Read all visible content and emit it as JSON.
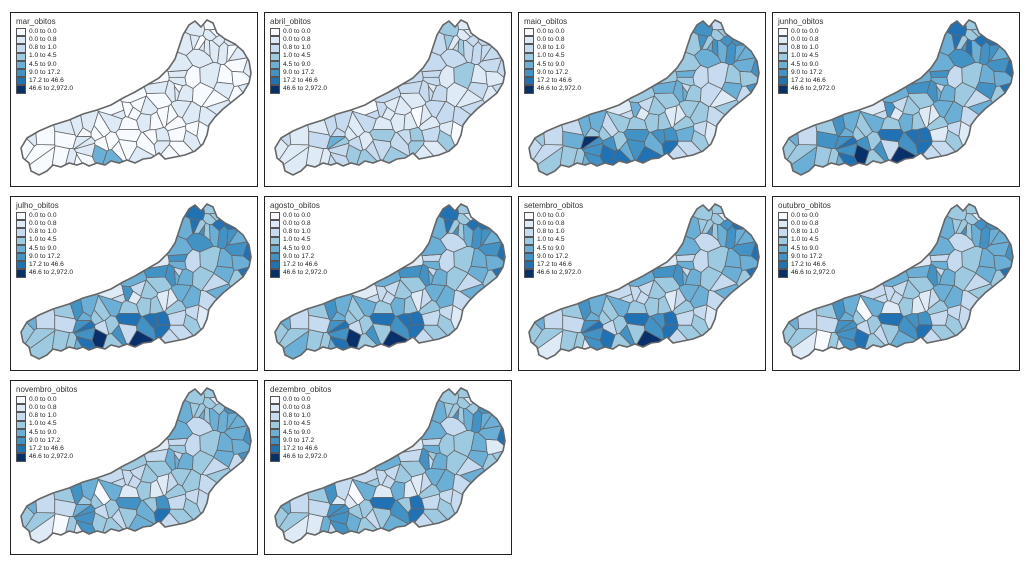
{
  "legend": {
    "classes": [
      "0.0 to 0.0",
      "0.0 to 0.8",
      "0.8 to 1.0",
      "1.0 to 4.5",
      "4.5 to 9.0",
      "9.0 to 17.2",
      "17.2 to 46.6",
      "46.6 to 2,972.0"
    ],
    "colors": [
      "#f7fbff",
      "#deebf7",
      "#c6dbef",
      "#9ecae1",
      "#6baed6",
      "#4292c6",
      "#2171b5",
      "#08306b"
    ]
  },
  "colors": {
    "border": "#666666",
    "frame": "#222222",
    "background": "#ffffff"
  },
  "maps": [
    {
      "title": "mar_obitos",
      "intensity": 0.05
    },
    {
      "title": "abril_obitos",
      "intensity": 0.35
    },
    {
      "title": "maio_obitos",
      "intensity": 0.7
    },
    {
      "title": "junho_obitos",
      "intensity": 0.78
    },
    {
      "title": "julho_obitos",
      "intensity": 0.74
    },
    {
      "title": "agosto_obitos",
      "intensity": 0.72
    },
    {
      "title": "setembro_obitos",
      "intensity": 0.68
    },
    {
      "title": "outubro_obitos",
      "intensity": 0.64
    },
    {
      "title": "novembro_obitos",
      "intensity": 0.6
    },
    {
      "title": "dezembro_obitos",
      "intensity": 0.62
    }
  ]
}
